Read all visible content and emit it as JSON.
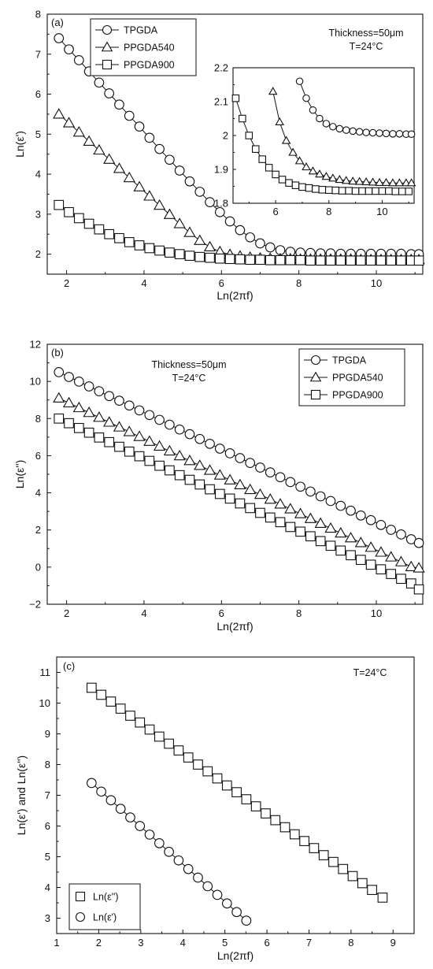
{
  "chart_data": [
    {
      "panel": "(a)",
      "type": "line",
      "xlabel": "Ln(2πf)",
      "ylabel": "Ln(ε')",
      "xlim": [
        1.5,
        11.2
      ],
      "ylim": [
        1.5,
        8
      ],
      "xticks": [
        2,
        4,
        6,
        8,
        10
      ],
      "yticks": [
        2,
        3,
        4,
        5,
        6,
        7,
        8
      ],
      "annotations": [
        "Thickness=50μm",
        "T=24°C"
      ],
      "legend": "top-left",
      "series": [
        {
          "name": "TPGDA",
          "marker": "circle",
          "x": [
            1.8,
            2.06,
            2.32,
            2.58,
            2.84,
            3.1,
            3.36,
            3.62,
            3.88,
            4.14,
            4.4,
            4.66,
            4.92,
            5.18,
            5.44,
            5.7,
            5.96,
            6.22,
            6.48,
            6.74,
            7.0,
            7.26,
            7.52,
            7.78,
            8.04,
            8.3,
            8.56,
            8.82,
            9.08,
            9.34,
            9.6,
            9.86,
            10.12,
            10.38,
            10.64,
            10.9,
            11.1
          ],
          "y": [
            7.4,
            7.12,
            6.85,
            6.57,
            6.29,
            6.02,
            5.74,
            5.46,
            5.19,
            4.91,
            4.63,
            4.36,
            4.09,
            3.82,
            3.56,
            3.3,
            3.05,
            2.82,
            2.6,
            2.42,
            2.27,
            2.17,
            2.1,
            2.06,
            2.04,
            2.03,
            2.02,
            2.02,
            2.01,
            2.01,
            2.01,
            2.01,
            2.01,
            2.01,
            2.01,
            2.0,
            2.0
          ]
        },
        {
          "name": "PPGDA540",
          "marker": "triangle",
          "x": [
            1.8,
            2.06,
            2.32,
            2.58,
            2.84,
            3.1,
            3.36,
            3.62,
            3.88,
            4.14,
            4.4,
            4.66,
            4.92,
            5.18,
            5.44,
            5.7,
            5.96,
            6.22,
            6.48,
            6.74,
            7.0,
            7.26,
            7.52,
            7.78,
            8.04,
            8.3,
            8.56,
            8.82,
            9.08,
            9.34,
            9.6,
            9.86,
            10.12,
            10.38,
            10.64,
            10.9,
            11.1
          ],
          "y": [
            5.5,
            5.28,
            5.05,
            4.82,
            4.6,
            4.37,
            4.14,
            3.91,
            3.68,
            3.45,
            3.22,
            2.99,
            2.76,
            2.54,
            2.34,
            2.18,
            2.06,
            1.99,
            1.95,
            1.92,
            1.9,
            1.89,
            1.88,
            1.88,
            1.87,
            1.87,
            1.87,
            1.87,
            1.87,
            1.87,
            1.86,
            1.86,
            1.86,
            1.86,
            1.86,
            1.86,
            1.86
          ]
        },
        {
          "name": "PPGDA900",
          "marker": "square",
          "x": [
            1.8,
            2.06,
            2.32,
            2.58,
            2.84,
            3.1,
            3.36,
            3.62,
            3.88,
            4.14,
            4.4,
            4.66,
            4.92,
            5.18,
            5.44,
            5.7,
            5.96,
            6.22,
            6.48,
            6.74,
            7.0,
            7.26,
            7.52,
            7.78,
            8.04,
            8.3,
            8.56,
            8.82,
            9.08,
            9.34,
            9.6,
            9.86,
            10.12,
            10.38,
            10.64,
            10.9,
            11.1
          ],
          "y": [
            3.23,
            3.05,
            2.9,
            2.76,
            2.62,
            2.5,
            2.4,
            2.3,
            2.22,
            2.15,
            2.09,
            2.04,
            2.0,
            1.96,
            1.93,
            1.91,
            1.89,
            1.88,
            1.87,
            1.86,
            1.86,
            1.85,
            1.85,
            1.85,
            1.85,
            1.84,
            1.84,
            1.84,
            1.84,
            1.84,
            1.84,
            1.84,
            1.84,
            1.84,
            1.84,
            1.84,
            1.84
          ]
        }
      ],
      "inset": {
        "xlim": [
          4.4,
          11.2
        ],
        "ylim": [
          1.8,
          2.2
        ],
        "xticks": [
          6,
          8,
          10
        ],
        "yticks": [
          1.8,
          1.9,
          2.0,
          2.1,
          2.2
        ],
        "series": [
          {
            "name": "TPGDA",
            "marker": "circle",
            "x": [
              6.9,
              7.15,
              7.4,
              7.65,
              7.9,
              8.15,
              8.4,
              8.65,
              8.9,
              9.15,
              9.4,
              9.65,
              9.9,
              10.15,
              10.4,
              10.65,
              10.9,
              11.1
            ],
            "y": [
              2.16,
              2.11,
              2.075,
              2.05,
              2.035,
              2.026,
              2.02,
              2.016,
              2.013,
              2.011,
              2.009,
              2.008,
              2.007,
              2.006,
              2.005,
              2.005,
              2.004,
              2.004
            ]
          },
          {
            "name": "PPGDA540",
            "marker": "triangle",
            "x": [
              5.9,
              6.15,
              6.4,
              6.65,
              6.9,
              7.15,
              7.4,
              7.65,
              7.9,
              8.15,
              8.4,
              8.65,
              8.9,
              9.15,
              9.4,
              9.65,
              9.9,
              10.15,
              10.4,
              10.65,
              10.9,
              11.1
            ],
            "y": [
              2.13,
              2.04,
              1.985,
              1.95,
              1.925,
              1.907,
              1.895,
              1.886,
              1.879,
              1.874,
              1.87,
              1.867,
              1.865,
              1.864,
              1.863,
              1.862,
              1.861,
              1.861,
              1.86,
              1.86,
              1.86,
              1.86
            ]
          },
          {
            "name": "PPGDA900",
            "marker": "square",
            "x": [
              4.5,
              4.75,
              5.0,
              5.25,
              5.5,
              5.75,
              6.0,
              6.25,
              6.5,
              6.75,
              7.0,
              7.25,
              7.5,
              7.75,
              8.0,
              8.25,
              8.5,
              8.75,
              9.0,
              9.25,
              9.5,
              9.75,
              10.0,
              10.25,
              10.5,
              10.75,
              11.0
            ],
            "y": [
              2.11,
              2.05,
              2.0,
              1.96,
              1.93,
              1.905,
              1.885,
              1.87,
              1.86,
              1.853,
              1.848,
              1.845,
              1.842,
              1.84,
              1.839,
              1.838,
              1.837,
              1.837,
              1.836,
              1.836,
              1.836,
              1.836,
              1.836,
              1.836,
              1.835,
              1.835,
              1.835
            ]
          }
        ]
      }
    },
    {
      "panel": "(b)",
      "type": "line",
      "xlabel": "Ln(2πf)",
      "ylabel": "Ln(ε'')",
      "xlim": [
        1.5,
        11.2
      ],
      "ylim": [
        -2,
        12
      ],
      "xticks": [
        2,
        4,
        6,
        8,
        10
      ],
      "yticks": [
        -2,
        0,
        2,
        4,
        6,
        8,
        10,
        12
      ],
      "annotations": [
        "Thickness=50μm",
        "T=24°C"
      ],
      "legend": "top-right",
      "series": [
        {
          "name": "TPGDA",
          "marker": "circle",
          "x": [
            1.8,
            2.06,
            2.32,
            2.58,
            2.84,
            3.1,
            3.36,
            3.62,
            3.88,
            4.14,
            4.4,
            4.66,
            4.92,
            5.18,
            5.44,
            5.7,
            5.96,
            6.22,
            6.48,
            6.74,
            7.0,
            7.26,
            7.52,
            7.78,
            8.04,
            8.3,
            8.56,
            8.82,
            9.08,
            9.34,
            9.6,
            9.86,
            10.12,
            10.38,
            10.64,
            10.9,
            11.1
          ],
          "y": [
            10.5,
            10.24,
            9.99,
            9.73,
            9.47,
            9.21,
            8.96,
            8.7,
            8.44,
            8.19,
            7.93,
            7.67,
            7.41,
            7.16,
            6.9,
            6.64,
            6.38,
            6.13,
            5.87,
            5.61,
            5.36,
            5.1,
            4.84,
            4.58,
            4.33,
            4.07,
            3.81,
            3.56,
            3.3,
            3.04,
            2.78,
            2.53,
            2.27,
            2.01,
            1.76,
            1.5,
            1.3
          ]
        },
        {
          "name": "PPGDA540",
          "marker": "triangle",
          "x": [
            1.8,
            2.06,
            2.32,
            2.58,
            2.84,
            3.1,
            3.36,
            3.62,
            3.88,
            4.14,
            4.4,
            4.66,
            4.92,
            5.18,
            5.44,
            5.7,
            5.96,
            6.22,
            6.48,
            6.74,
            7.0,
            7.26,
            7.52,
            7.78,
            8.04,
            8.3,
            8.56,
            8.82,
            9.08,
            9.34,
            9.6,
            9.86,
            10.12,
            10.38,
            10.64,
            10.9,
            11.1
          ],
          "y": [
            9.1,
            8.84,
            8.58,
            8.32,
            8.06,
            7.8,
            7.54,
            7.29,
            7.03,
            6.77,
            6.51,
            6.25,
            5.99,
            5.73,
            5.47,
            5.21,
            4.95,
            4.69,
            4.43,
            4.17,
            3.91,
            3.65,
            3.39,
            3.13,
            2.87,
            2.61,
            2.35,
            2.09,
            1.83,
            1.57,
            1.31,
            1.06,
            0.8,
            0.54,
            0.28,
            0.02,
            -0.05
          ]
        },
        {
          "name": "PPGDA900",
          "marker": "square",
          "x": [
            1.8,
            2.06,
            2.32,
            2.58,
            2.84,
            3.1,
            3.36,
            3.62,
            3.88,
            4.14,
            4.4,
            4.66,
            4.92,
            5.18,
            5.44,
            5.7,
            5.96,
            6.22,
            6.48,
            6.74,
            7.0,
            7.26,
            7.52,
            7.78,
            8.04,
            8.3,
            8.56,
            8.82,
            9.08,
            9.34,
            9.6,
            9.86,
            10.12,
            10.38,
            10.64,
            10.9,
            11.1
          ],
          "y": [
            8.0,
            7.75,
            7.49,
            7.24,
            6.98,
            6.73,
            6.48,
            6.22,
            5.97,
            5.72,
            5.46,
            5.21,
            4.95,
            4.7,
            4.45,
            4.19,
            3.94,
            3.69,
            3.43,
            3.18,
            2.92,
            2.67,
            2.42,
            2.16,
            1.91,
            1.66,
            1.4,
            1.15,
            0.89,
            0.64,
            0.39,
            0.13,
            -0.12,
            -0.37,
            -0.63,
            -0.88,
            -1.2
          ]
        }
      ]
    },
    {
      "panel": "(c)",
      "type": "line",
      "xlabel": "Ln(2πf)",
      "ylabel": "Ln(ε') and Ln(ε'')",
      "xlim": [
        1,
        9.5
      ],
      "ylim": [
        2.5,
        11.5
      ],
      "xticks": [
        1,
        2,
        3,
        4,
        5,
        6,
        7,
        8,
        9
      ],
      "yticks": [
        3,
        4,
        5,
        6,
        7,
        8,
        9,
        10,
        11
      ],
      "annotations": [
        "T=24°C"
      ],
      "legend": "bottom-left",
      "series": [
        {
          "name": "Ln(ε'')",
          "marker": "square",
          "x": [
            1.83,
            2.06,
            2.29,
            2.52,
            2.75,
            2.98,
            3.21,
            3.44,
            3.67,
            3.9,
            4.13,
            4.36,
            4.59,
            4.82,
            5.05,
            5.28,
            5.51,
            5.74,
            5.97,
            6.2,
            6.43,
            6.66,
            6.89,
            7.12,
            7.35,
            7.58,
            7.81,
            8.04,
            8.27,
            8.5,
            8.75
          ],
          "y": [
            10.5,
            10.27,
            10.05,
            9.82,
            9.59,
            9.37,
            9.14,
            8.91,
            8.68,
            8.46,
            8.23,
            8.0,
            7.78,
            7.55,
            7.32,
            7.1,
            6.87,
            6.64,
            6.41,
            6.19,
            5.96,
            5.73,
            5.51,
            5.28,
            5.05,
            4.83,
            4.6,
            4.37,
            4.14,
            3.92,
            3.67
          ]
        },
        {
          "name": "Ln(ε')",
          "marker": "circle",
          "x": [
            1.83,
            2.06,
            2.29,
            2.52,
            2.75,
            2.98,
            3.21,
            3.44,
            3.67,
            3.9,
            4.13,
            4.36,
            4.59,
            4.82,
            5.05,
            5.28,
            5.51
          ],
          "y": [
            7.4,
            7.12,
            6.84,
            6.56,
            6.28,
            6.0,
            5.72,
            5.44,
            5.16,
            4.88,
            4.6,
            4.32,
            4.04,
            3.76,
            3.48,
            3.2,
            2.92
          ]
        }
      ]
    }
  ]
}
